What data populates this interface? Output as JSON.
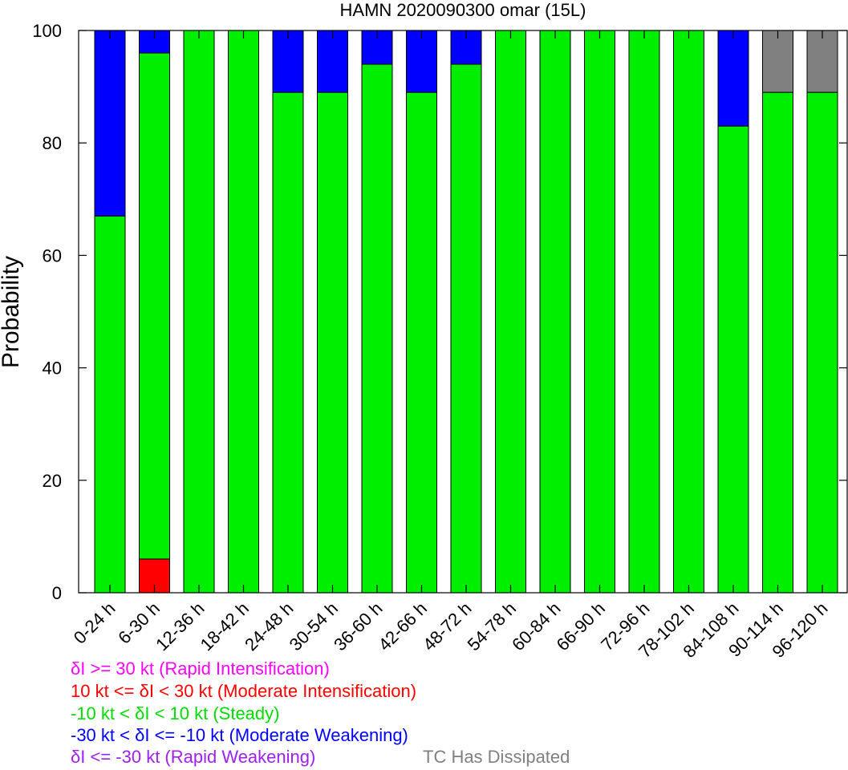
{
  "chart_data": {
    "type": "bar",
    "stacked": true,
    "title": "HAMN 2020090300 omar (15L)",
    "xlabel": "",
    "ylabel": "Probability",
    "ylim": [
      0,
      100
    ],
    "yticks": [
      "0",
      "20",
      "40",
      "60",
      "80",
      "100"
    ],
    "grid": false,
    "categories": [
      "0-24 h",
      "6-30 h",
      "12-36 h",
      "18-42 h",
      "24-48 h",
      "30-54 h",
      "36-60 h",
      "42-66 h",
      "48-72 h",
      "54-78 h",
      "60-84 h",
      "66-90 h",
      "72-96 h",
      "78-102 h",
      "84-108 h",
      "90-114 h",
      "96-120 h"
    ],
    "series": [
      {
        "name": "δI >= 30 kt (Rapid Intensification)",
        "color": "#ff00ff",
        "values": [
          0,
          0,
          0,
          0,
          0,
          0,
          0,
          0,
          0,
          0,
          0,
          0,
          0,
          0,
          0,
          0,
          0
        ]
      },
      {
        "name": "10 kt <= δI < 30 kt (Moderate Intensification)",
        "color": "#ff0000",
        "values": [
          0,
          6,
          0,
          0,
          0,
          0,
          0,
          0,
          0,
          0,
          0,
          0,
          0,
          0,
          0,
          0,
          0
        ]
      },
      {
        "name": "-10 kt < δI < 10 kt (Steady)",
        "color": "#00ee00",
        "values": [
          67,
          90,
          100,
          100,
          89,
          89,
          94,
          89,
          94,
          100,
          100,
          100,
          100,
          100,
          83,
          89,
          89
        ]
      },
      {
        "name": "-30 kt < δI <= -10 kt (Moderate Weakening)",
        "color": "#0000ff",
        "values": [
          33,
          4,
          0,
          0,
          11,
          11,
          6,
          11,
          6,
          0,
          0,
          0,
          0,
          0,
          17,
          0,
          0
        ]
      },
      {
        "name": "δI <= -30 kt (Rapid Weakening)",
        "color": "#a020f0",
        "values": [
          0,
          0,
          0,
          0,
          0,
          0,
          0,
          0,
          0,
          0,
          0,
          0,
          0,
          0,
          0,
          0,
          0
        ]
      },
      {
        "name": "TC Has Dissipated",
        "color": "#808080",
        "values": [
          0,
          0,
          0,
          0,
          0,
          0,
          0,
          0,
          0,
          0,
          0,
          0,
          0,
          0,
          0,
          11,
          11
        ]
      }
    ]
  },
  "legend": {
    "ri": "δI >= 30 kt (Rapid Intensification)",
    "mi": "10 kt <= δI < 30 kt (Moderate Intensification)",
    "steady": "-10 kt < δI < 10 kt (Steady)",
    "mw": "-30 kt < δI <= -10 kt (Moderate Weakening)",
    "rw": "δI <= -30 kt (Rapid Weakening)",
    "dissipated": "TC Has Dissipated"
  },
  "colors": {
    "ri": "#ff00ff",
    "mi": "#ff0000",
    "steady": "#00dd00",
    "mw": "#0000ff",
    "rw": "#a020f0",
    "dissipated": "#808080"
  }
}
